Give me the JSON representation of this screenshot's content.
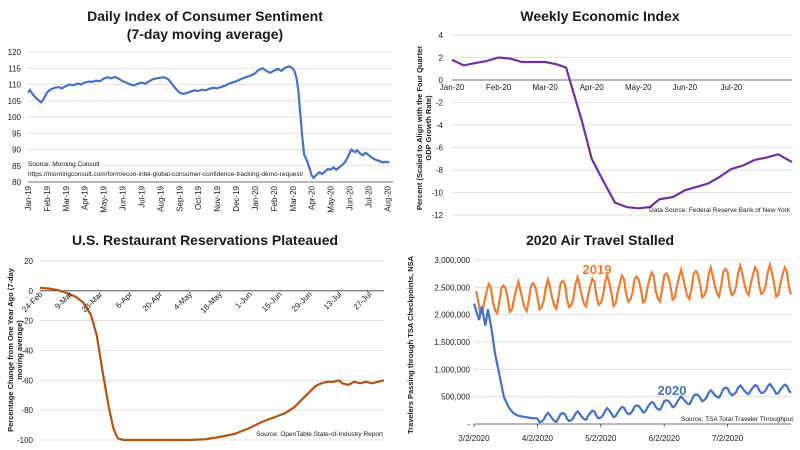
{
  "chart_data": [
    {
      "id": "sentiment",
      "type": "line",
      "title_lines": [
        "Daily Index of Consumer Sentiment",
        "(7-day moving average)"
      ],
      "ylim": [
        80,
        120
      ],
      "yticks": [
        80,
        85,
        90,
        95,
        100,
        105,
        110,
        115,
        120
      ],
      "xlim": [
        0,
        19.3
      ],
      "xtick_labels": [
        "Jan-19",
        "Feb-19",
        "Mar-19",
        "Apr-19",
        "May-19",
        "Jun-19",
        "Jul-19",
        "Aug-19",
        "Sep-19",
        "Oct-19",
        "Nov-19",
        "Dec-19",
        "Jan-20",
        "Feb-20",
        "Mar-20",
        "Apr-20",
        "May-20",
        "Jun-20",
        "Jul-20",
        "Aug-20"
      ],
      "source_lines": [
        "Source: Morning Consult",
        "https://morningconsult.com/form/econ-intel-global-consumer-confidence-tracking-demo-request/"
      ],
      "color": "#4472c4",
      "series": [
        {
          "name": "Consumer Sentiment",
          "points": [
            [
              0,
              107.5
            ],
            [
              0.1,
              108.3
            ],
            [
              0.25,
              107.0
            ],
            [
              0.4,
              106.0
            ],
            [
              0.55,
              105.2
            ],
            [
              0.7,
              104.5
            ],
            [
              0.85,
              105.8
            ],
            [
              1.0,
              107.5
            ],
            [
              1.2,
              108.5
            ],
            [
              1.4,
              109.0
            ],
            [
              1.6,
              109.2
            ],
            [
              1.8,
              108.8
            ],
            [
              2.0,
              109.5
            ],
            [
              2.2,
              110.0
            ],
            [
              2.4,
              109.8
            ],
            [
              2.6,
              110.3
            ],
            [
              2.8,
              110.0
            ],
            [
              3.0,
              110.6
            ],
            [
              3.2,
              110.9
            ],
            [
              3.4,
              110.8
            ],
            [
              3.6,
              111.2
            ],
            [
              3.8,
              111.0
            ],
            [
              4.0,
              111.8
            ],
            [
              4.2,
              112.2
            ],
            [
              4.4,
              111.9
            ],
            [
              4.6,
              112.3
            ],
            [
              4.8,
              111.8
            ],
            [
              5.0,
              111.0
            ],
            [
              5.2,
              110.6
            ],
            [
              5.4,
              110.0
            ],
            [
              5.6,
              109.7
            ],
            [
              5.8,
              110.2
            ],
            [
              6.0,
              110.6
            ],
            [
              6.2,
              110.2
            ],
            [
              6.4,
              111.0
            ],
            [
              6.6,
              111.6
            ],
            [
              6.8,
              111.9
            ],
            [
              7.0,
              112.1
            ],
            [
              7.2,
              112.2
            ],
            [
              7.4,
              111.7
            ],
            [
              7.6,
              110.3
            ],
            [
              7.8,
              108.8
            ],
            [
              8.0,
              107.5
            ],
            [
              8.2,
              107.1
            ],
            [
              8.4,
              107.4
            ],
            [
              8.6,
              107.8
            ],
            [
              8.8,
              108.2
            ],
            [
              9.0,
              108.0
            ],
            [
              9.2,
              108.4
            ],
            [
              9.4,
              108.2
            ],
            [
              9.6,
              108.7
            ],
            [
              9.8,
              109.0
            ],
            [
              10.0,
              108.8
            ],
            [
              10.2,
              109.2
            ],
            [
              10.4,
              109.6
            ],
            [
              10.6,
              110.2
            ],
            [
              10.8,
              110.6
            ],
            [
              11.0,
              111.0
            ],
            [
              11.2,
              111.5
            ],
            [
              11.4,
              112.0
            ],
            [
              11.6,
              112.4
            ],
            [
              11.8,
              112.8
            ],
            [
              12.0,
              113.4
            ],
            [
              12.2,
              114.5
            ],
            [
              12.4,
              115.0
            ],
            [
              12.6,
              114.2
            ],
            [
              12.8,
              113.6
            ],
            [
              13.0,
              114.2
            ],
            [
              13.2,
              114.8
            ],
            [
              13.4,
              114.2
            ],
            [
              13.6,
              115.2
            ],
            [
              13.8,
              115.6
            ],
            [
              14.0,
              115.0
            ],
            [
              14.1,
              114.0
            ],
            [
              14.2,
              112.0
            ],
            [
              14.3,
              108.0
            ],
            [
              14.4,
              101.0
            ],
            [
              14.5,
              94.0
            ],
            [
              14.6,
              88.5
            ],
            [
              14.75,
              86.5
            ],
            [
              14.9,
              84.0
            ],
            [
              15.0,
              82.0
            ],
            [
              15.1,
              81.3
            ],
            [
              15.25,
              82.2
            ],
            [
              15.4,
              83.0
            ],
            [
              15.55,
              82.5
            ],
            [
              15.7,
              83.2
            ],
            [
              15.85,
              84.0
            ],
            [
              16.0,
              83.8
            ],
            [
              16.15,
              84.5
            ],
            [
              16.3,
              83.8
            ],
            [
              16.45,
              84.5
            ],
            [
              16.6,
              85.2
            ],
            [
              16.75,
              86.0
            ],
            [
              16.9,
              87.5
            ],
            [
              17.0,
              88.8
            ],
            [
              17.1,
              90.0
            ],
            [
              17.2,
              89.5
            ],
            [
              17.3,
              89.2
            ],
            [
              17.4,
              89.8
            ],
            [
              17.55,
              88.8
            ],
            [
              17.7,
              88.2
            ],
            [
              17.85,
              89.0
            ],
            [
              18.0,
              88.4
            ],
            [
              18.15,
              87.6
            ],
            [
              18.3,
              87.1
            ],
            [
              18.45,
              86.7
            ],
            [
              18.6,
              86.4
            ],
            [
              18.75,
              86.0
            ],
            [
              18.9,
              86.2
            ],
            [
              19.0,
              86.0
            ],
            [
              19.1,
              86.3
            ]
          ]
        }
      ]
    },
    {
      "id": "wei",
      "type": "line",
      "title_lines": [
        "Weekly Economic Index"
      ],
      "ylabel_lines": [
        "Percent (Scaled to Align with the Four Quarter",
        "GDP Growth Rate)"
      ],
      "ylim": [
        -12,
        4
      ],
      "yticks": [
        -12,
        -10,
        -8,
        -6,
        -4,
        -2,
        0,
        2,
        4
      ],
      "xlim": [
        0,
        7.3
      ],
      "xtick_labels": [
        "Jan-20",
        "Feb-20",
        "Mar-20",
        "Apr-20",
        "May-20",
        "Jun-20",
        "Jul-20"
      ],
      "source_lines": [
        "Data Source: Federal Reserve Bank of New York"
      ],
      "color": "#7030a0",
      "series": [
        {
          "name": "WEI",
          "points": [
            [
              0,
              1.8
            ],
            [
              0.25,
              1.3
            ],
            [
              0.5,
              1.5
            ],
            [
              0.75,
              1.7
            ],
            [
              1.0,
              2.0
            ],
            [
              1.25,
              1.9
            ],
            [
              1.5,
              1.6
            ],
            [
              1.75,
              1.6
            ],
            [
              2.0,
              1.6
            ],
            [
              2.25,
              1.4
            ],
            [
              2.45,
              1.1
            ],
            [
              2.6,
              -1.0
            ],
            [
              2.8,
              -3.8
            ],
            [
              3.0,
              -7.0
            ],
            [
              3.25,
              -9.0
            ],
            [
              3.5,
              -10.9
            ],
            [
              3.75,
              -11.3
            ],
            [
              4.0,
              -11.4
            ],
            [
              4.25,
              -11.3
            ],
            [
              4.45,
              -10.6
            ],
            [
              4.75,
              -10.4
            ],
            [
              5.0,
              -9.8
            ],
            [
              5.25,
              -9.5
            ],
            [
              5.5,
              -9.2
            ],
            [
              5.75,
              -8.6
            ],
            [
              6.0,
              -7.9
            ],
            [
              6.25,
              -7.6
            ],
            [
              6.5,
              -7.1
            ],
            [
              6.75,
              -6.9
            ],
            [
              7.0,
              -6.6
            ],
            [
              7.3,
              -7.3
            ]
          ]
        }
      ]
    },
    {
      "id": "opentable",
      "type": "line",
      "title_lines": [
        "U.S. Restaurant Reservations Plateaued"
      ],
      "ylabel_lines": [
        "Percentage Change from One Year Ago (7-day",
        "moving average)"
      ],
      "ylim": [
        -100,
        20
      ],
      "yticks": [
        -100,
        -80,
        -60,
        -40,
        -20,
        0,
        20
      ],
      "xlim": [
        0,
        11.5
      ],
      "xtick_labels": [
        "24-Feb",
        "9-Mar",
        "23-Mar",
        "6-Apr",
        "20-Apr",
        "4-May",
        "18-May",
        "1-Jun",
        "15-Jun",
        "29-Jun",
        "13-Jul",
        "27-Jul"
      ],
      "source_lines": [
        "Source: OpenTable State-of-Industry Report"
      ],
      "color": "#b5520e",
      "series": [
        {
          "name": "Reservations",
          "points": [
            [
              0,
              2
            ],
            [
              0.3,
              1.5
            ],
            [
              0.6,
              0.5
            ],
            [
              0.9,
              -1.5
            ],
            [
              1.2,
              -4
            ],
            [
              1.45,
              -8
            ],
            [
              1.7,
              -16
            ],
            [
              1.9,
              -30
            ],
            [
              2.1,
              -55
            ],
            [
              2.3,
              -78
            ],
            [
              2.45,
              -92
            ],
            [
              2.6,
              -99
            ],
            [
              2.8,
              -100
            ],
            [
              4,
              -100
            ],
            [
              5,
              -100
            ],
            [
              5.5,
              -99.5
            ],
            [
              6,
              -98
            ],
            [
              6.5,
              -96
            ],
            [
              7,
              -92
            ],
            [
              7.4,
              -88
            ],
            [
              7.8,
              -85
            ],
            [
              8.2,
              -82
            ],
            [
              8.5,
              -78
            ],
            [
              8.8,
              -72
            ],
            [
              9.0,
              -68
            ],
            [
              9.2,
              -64
            ],
            [
              9.4,
              -62
            ],
            [
              9.6,
              -61
            ],
            [
              9.8,
              -61
            ],
            [
              10.0,
              -60
            ],
            [
              10.1,
              -62
            ],
            [
              10.3,
              -63
            ],
            [
              10.5,
              -61
            ],
            [
              10.7,
              -62
            ],
            [
              10.9,
              -61
            ],
            [
              11.1,
              -62
            ],
            [
              11.3,
              -61
            ],
            [
              11.5,
              -60
            ]
          ]
        }
      ]
    },
    {
      "id": "tsa",
      "type": "line",
      "title_lines": [
        "2020 Air Travel Stalled"
      ],
      "ylabel_lines": [
        "Travelers Passing through TSA Checkpoints, NSA"
      ],
      "ylim": [
        0,
        3000000
      ],
      "yticks": [
        0,
        500000,
        1000000,
        1500000,
        2000000,
        2500000,
        3000000
      ],
      "ytick_labels": [
        "-",
        "500,000",
        "1,000,000",
        "1,500,000",
        "2,000,000",
        "2,500,000",
        "3,000,000"
      ],
      "xlim": [
        0,
        5
      ],
      "xtick_labels": [
        "3/2/2020",
        "4/2/2020",
        "5/2/2020",
        "6/2/2020",
        "7/2/2020"
      ],
      "source_lines": [
        "Source: TSA Total Traveler Throughput"
      ],
      "series": [
        {
          "name": "2019",
          "label": "2019",
          "color": "#ed7d31",
          "base": [
            [
              0,
              2280000
            ],
            [
              1,
              2350000
            ],
            [
              2,
              2420000
            ],
            [
              3,
              2530000
            ],
            [
              4,
              2600000
            ],
            [
              4.5,
              2620000
            ],
            [
              5,
              2600000
            ]
          ],
          "amplitude": 260000,
          "period_weeks": 1
        },
        {
          "name": "2020",
          "label": "2020",
          "color": "#4472c4",
          "points": [
            [
              0,
              2200000
            ],
            [
              0.08,
              1900000
            ],
            [
              0.12,
              2150000
            ],
            [
              0.18,
              1800000
            ],
            [
              0.22,
              2100000
            ],
            [
              0.28,
              1700000
            ],
            [
              0.33,
              1300000
            ],
            [
              0.4,
              900000
            ],
            [
              0.47,
              500000
            ],
            [
              0.55,
              300000
            ],
            [
              0.62,
              200000
            ],
            [
              0.7,
              150000
            ],
            [
              0.8,
              130000
            ],
            [
              0.9,
              110000
            ],
            [
              1.0,
              100000
            ]
          ],
          "base": [
            [
              1,
              110000
            ],
            [
              1.5,
              130000
            ],
            [
              2,
              180000
            ],
            [
              2.5,
              260000
            ],
            [
              3,
              360000
            ],
            [
              3.5,
              470000
            ],
            [
              4,
              600000
            ],
            [
              4.5,
              640000
            ],
            [
              5,
              640000
            ]
          ],
          "amplitude": 80000,
          "period_weeks": 1
        }
      ]
    }
  ]
}
